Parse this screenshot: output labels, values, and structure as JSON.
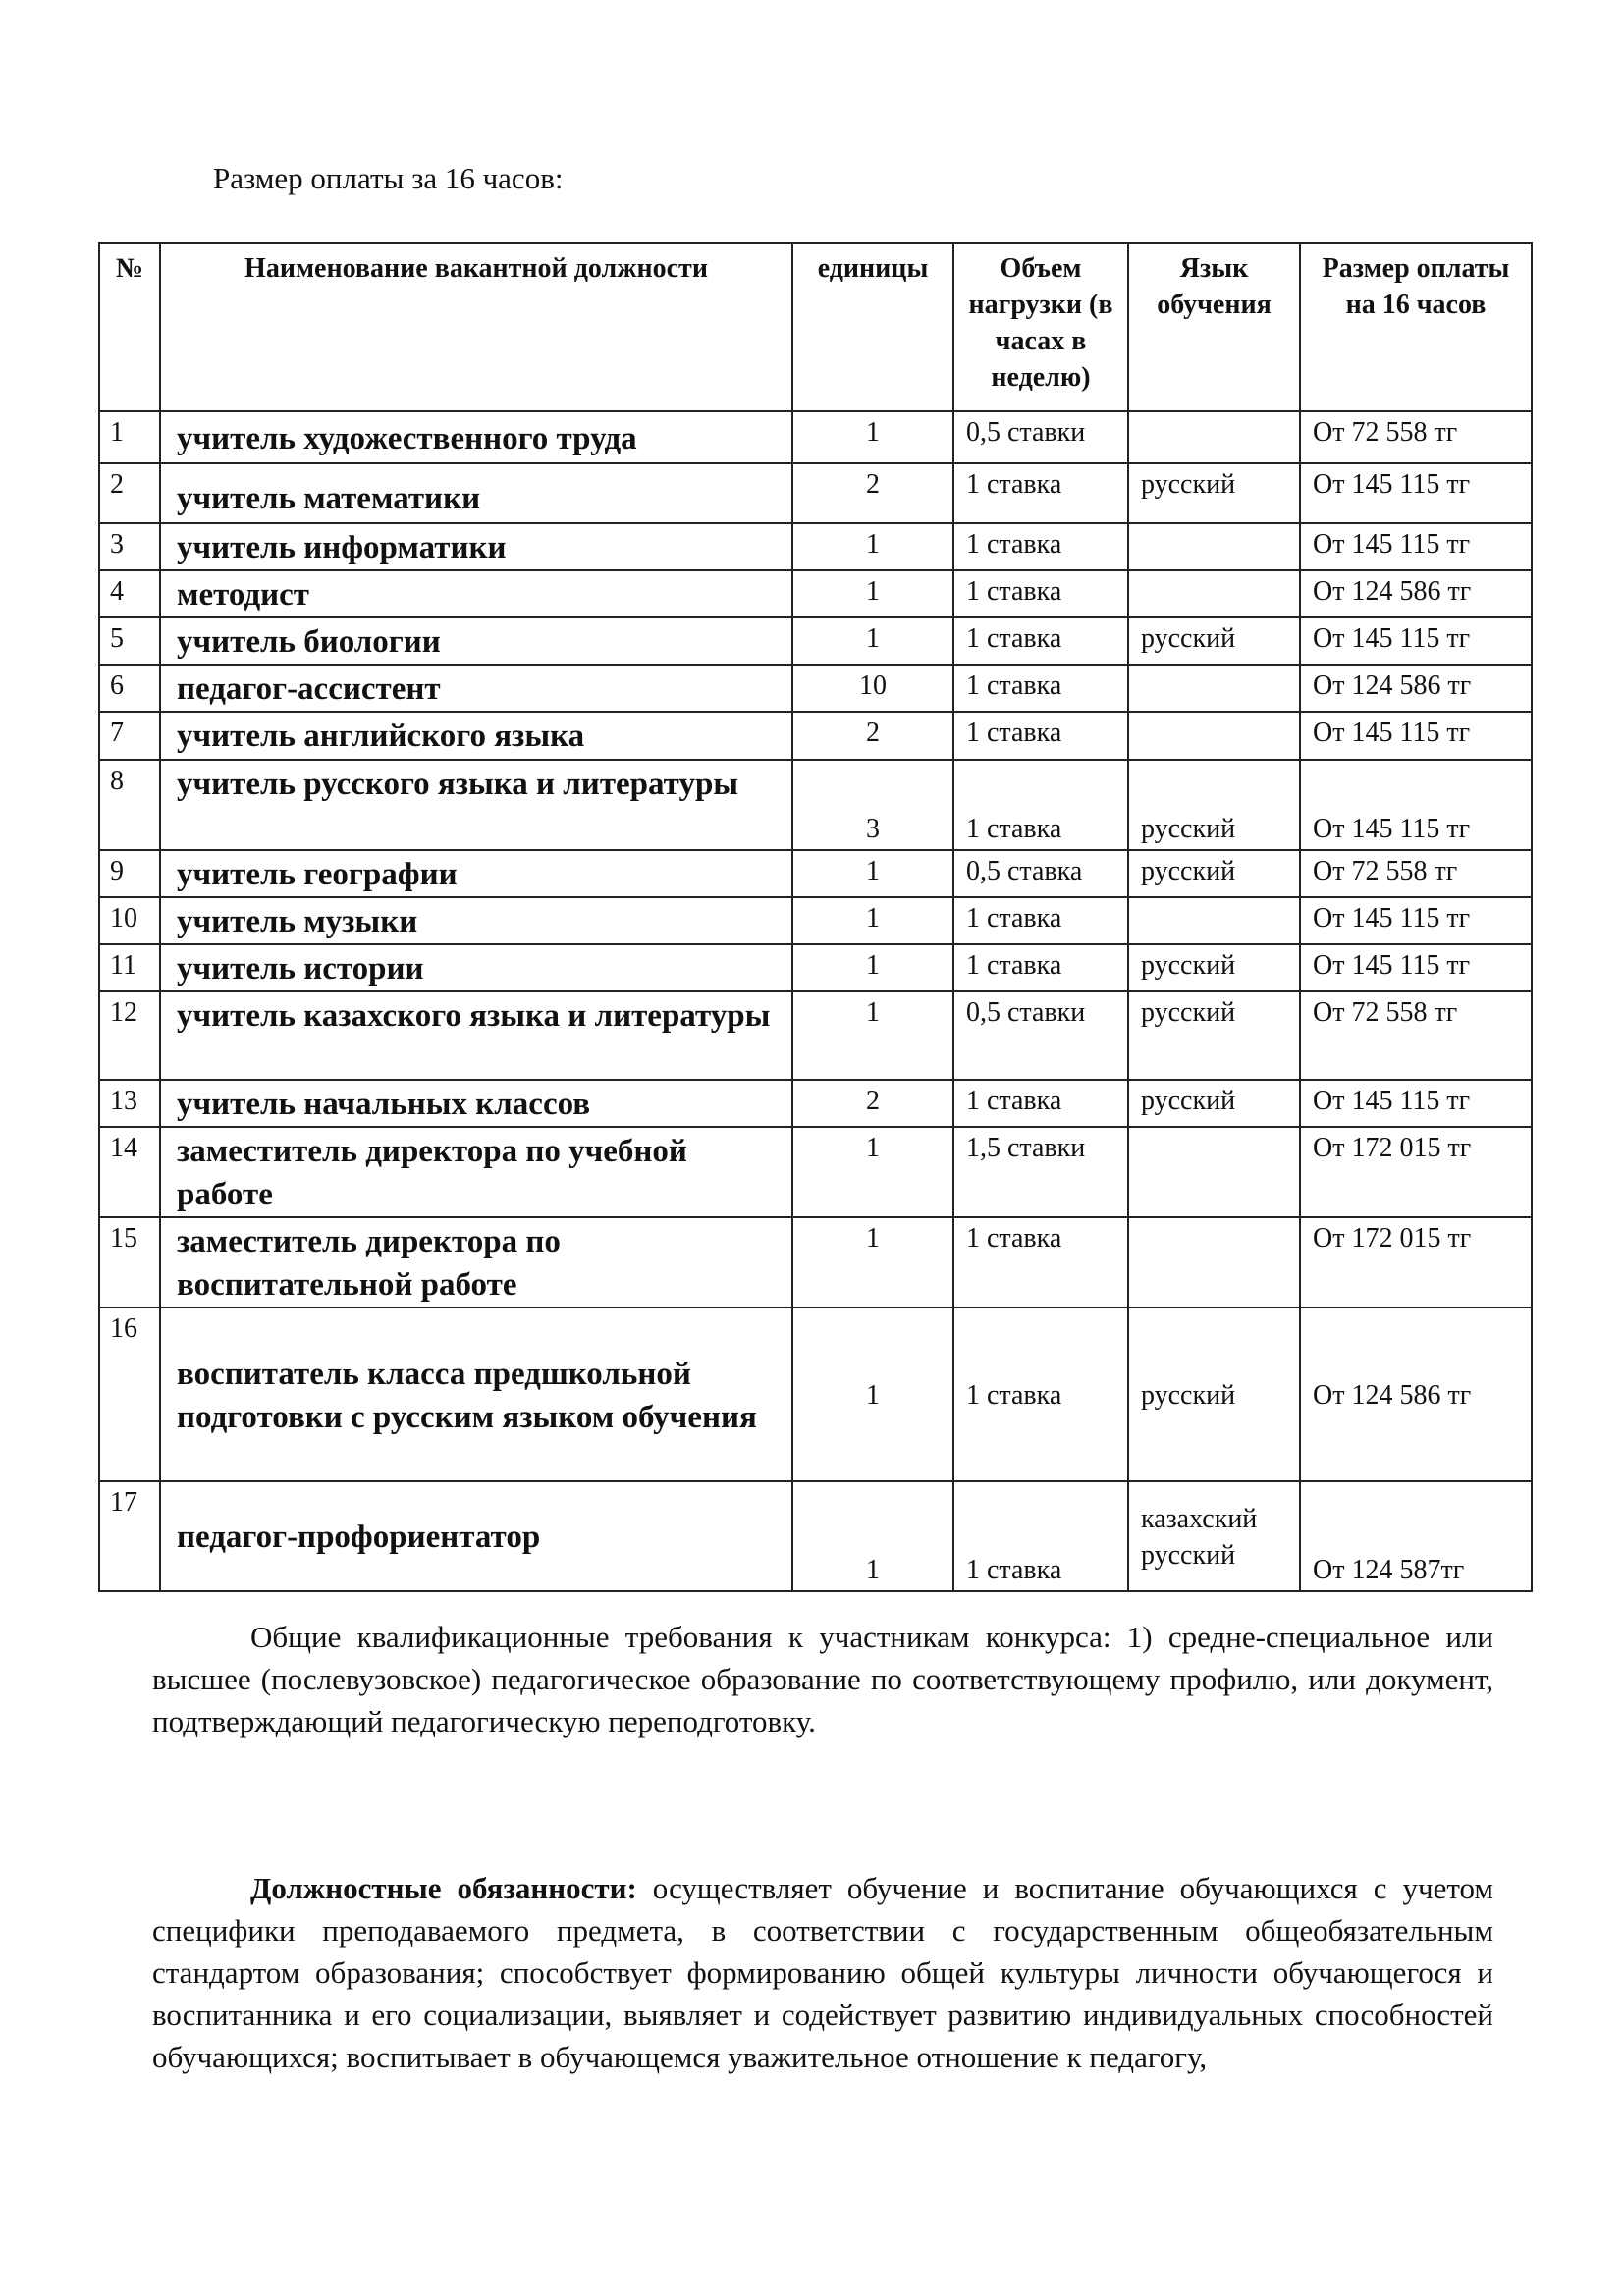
{
  "intro": "Размер оплаты за 16 часов:",
  "table": {
    "headers": [
      "№",
      "Наименование вакантной должности",
      "единицы",
      "Объем нагрузки (в часах в неделю)",
      "Язык обучения",
      "Размер оплаты на 16 часов"
    ],
    "rows": [
      {
        "n": "1",
        "name": "учитель художественного труда",
        "units": "1",
        "load": "0,5 ставки",
        "lang": "",
        "pay": "От 72 558 тг"
      },
      {
        "n": "2",
        "name": "учитель математики",
        "units": "2",
        "load": "1 ставка",
        "lang": "русский",
        "pay": "От 145 115 тг"
      },
      {
        "n": "3",
        "name": "учитель информатики",
        "units": "1",
        "load": "1 ставка",
        "lang": "",
        "pay": "От 145 115 тг"
      },
      {
        "n": "4",
        "name": "методист",
        "units": "1",
        "load": "1 ставка",
        "lang": "",
        "pay": "От 124 586 тг"
      },
      {
        "n": "5",
        "name": "учитель биологии",
        "units": "1",
        "load": "1 ставка",
        "lang": "русский",
        "pay": "От 145 115 тг"
      },
      {
        "n": "6",
        "name": "педагог-ассистент",
        "units": "10",
        "load": "1 ставка",
        "lang": "",
        "pay": "От 124 586 тг"
      },
      {
        "n": "7",
        "name": "учитель английского языка",
        "units": "2",
        "load": "1 ставка",
        "lang": "",
        "pay": "От 145 115 тг"
      },
      {
        "n": "8",
        "name": "учитель русского языка и литературы",
        "units": "3",
        "load": "1 ставка",
        "lang": "русский",
        "pay": "От 145 115 тг"
      },
      {
        "n": "9",
        "name": "учитель географии",
        "units": "1",
        "load": "0,5 ставка",
        "lang": "русский",
        "pay": "От 72 558 тг"
      },
      {
        "n": "10",
        "name": "учитель музыки",
        "units": "1",
        "load": "1 ставка",
        "lang": "",
        "pay": "От 145 115 тг"
      },
      {
        "n": "11",
        "name": "учитель истории",
        "units": "1",
        "load": "1 ставка",
        "lang": "русский",
        "pay": "От 145 115 тг"
      },
      {
        "n": "12",
        "name": "учитель казахского языка и литературы",
        "units": "1",
        "load": "0,5 ставки",
        "lang": "русский",
        "pay": "От 72 558 тг"
      },
      {
        "n": "13",
        "name": "учитель начальных классов",
        "units": "2",
        "load": "1 ставка",
        "lang": "русский",
        "pay": "От 145 115 тг"
      },
      {
        "n": "14",
        "name": "заместитель директора по учебной работе",
        "units": "1",
        "load": "1,5 ставки",
        "lang": "",
        "pay": "От 172 015 тг"
      },
      {
        "n": "15",
        "name": "заместитель директора по воспитательной  работе",
        "units": "1",
        "load": "1 ставка",
        "lang": "",
        "pay": "От 172 015 тг"
      },
      {
        "n": "16",
        "name": "воспитатель класса предшкольной подготовки с русским языком обучения",
        "units": "1",
        "load": "1 ставка",
        "lang": "русский",
        "pay": "От 124 586 тг"
      },
      {
        "n": "17",
        "name": "педагог-профориентатор",
        "units": "1",
        "load": "1 ставка",
        "lang": "казахский русский",
        "pay": "От 124 587тг"
      }
    ]
  },
  "paragraph1": "Общие квалификационные требования к участникам конкурса: 1) средне-специальное или высшее (послевузовское) педагогическое образование по соответствующему профилю, или документ, подтверждающий педагогическую переподготовку.",
  "paragraph2": {
    "label": "Должностные обязанности:",
    "text": " осуществляет обучение и воспитание обучающихся с учетом специфики преподаваемого предмета, в соответствии с государственным общеобязательным стандартом образования; способствует формированию общей культуры личности обучающегося и воспитанника и его социализации, выявляет и содействует развитию индивидуальных способностей обучающихся; воспитывает в обучающемся уважительное отношение к педагогу,"
  }
}
